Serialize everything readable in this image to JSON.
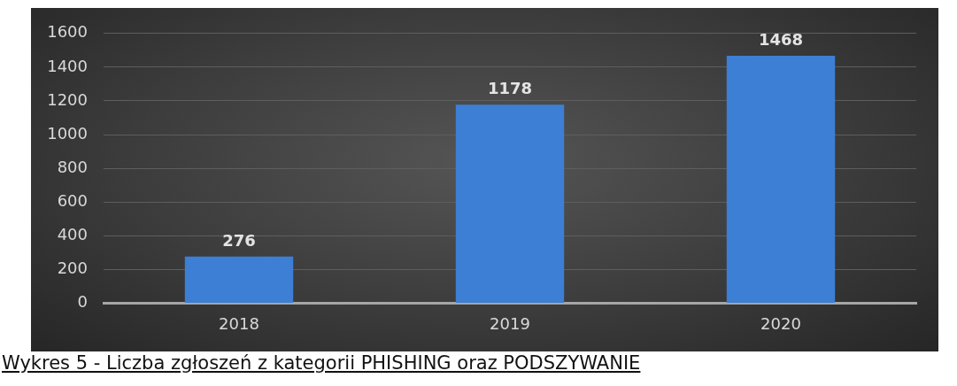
{
  "chart_data": {
    "type": "bar",
    "categories": [
      "2018",
      "2019",
      "2020"
    ],
    "values": [
      276,
      1178,
      1468
    ],
    "color": "#3c7fd4",
    "ylim": [
      0,
      1600
    ],
    "yticks": [
      0,
      200,
      400,
      600,
      800,
      1000,
      1200,
      1400,
      1600
    ],
    "grid": "y",
    "data_labels": true,
    "annotations": [
      "Wykres 5 - Liczba zgłoszeń z kategorii PHISHING oraz PODSZYWANIE"
    ]
  }
}
